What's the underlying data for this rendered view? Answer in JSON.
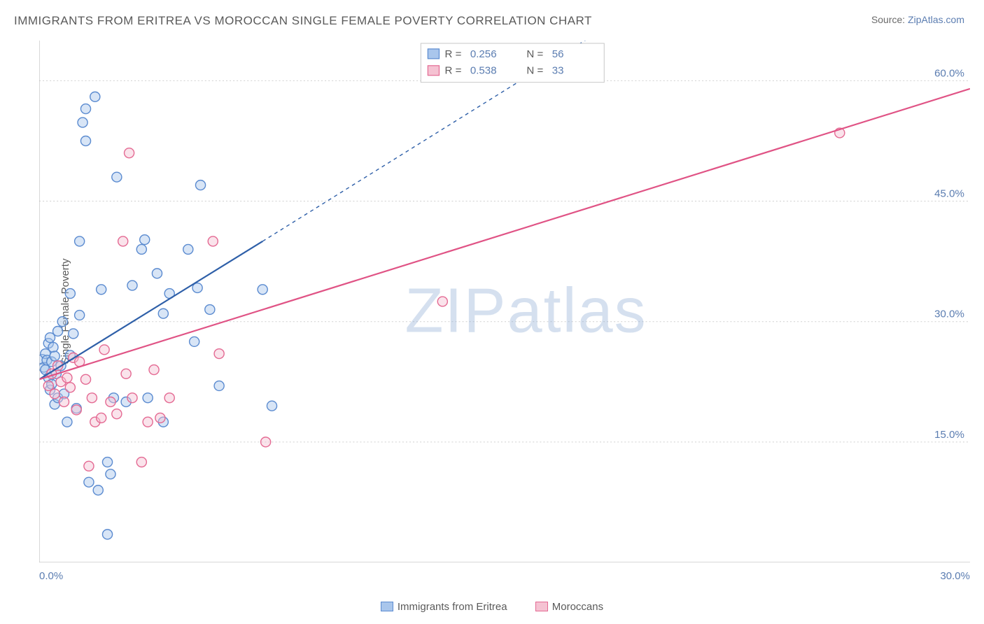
{
  "title": "IMMIGRANTS FROM ERITREA VS MOROCCAN SINGLE FEMALE POVERTY CORRELATION CHART",
  "source_prefix": "Source: ",
  "source_link": "ZipAtlas.com",
  "ylabel": "Single Female Poverty",
  "watermark_a": "ZIP",
  "watermark_b": "atlas",
  "chart": {
    "type": "scatter",
    "xlim": [
      0,
      30
    ],
    "ylim": [
      0,
      65
    ],
    "yticks": [
      15,
      30,
      45,
      60
    ],
    "ytick_labels": [
      "15.0%",
      "30.0%",
      "45.0%",
      "60.0%"
    ],
    "xticks": [
      0,
      5,
      10,
      15,
      20,
      25,
      30
    ],
    "xtick_labels_shown": {
      "0": "0.0%",
      "30": "30.0%"
    },
    "grid_color": "#d0d0d0",
    "axis_color": "#bfbfbf",
    "background": "#ffffff",
    "marker_radius": 7,
    "series": [
      {
        "name": "Immigrants from Eritrea",
        "fill": "#a9c6ec",
        "stroke": "#5b8bd0",
        "trend_color": "#2e5fa8",
        "R": "0.256",
        "N": "56",
        "trend": {
          "x1": 0,
          "y1": 22.8,
          "x2_solid": 7.2,
          "y2_solid": 40.0,
          "x2_dash": 18.0,
          "y2_dash": 66.0
        },
        "points": [
          [
            0.1,
            25.3
          ],
          [
            0.15,
            24.3
          ],
          [
            0.2,
            26.0
          ],
          [
            0.2,
            24.0
          ],
          [
            0.25,
            25.2
          ],
          [
            0.3,
            27.3
          ],
          [
            0.3,
            23.0
          ],
          [
            0.35,
            28.0
          ],
          [
            0.35,
            21.5
          ],
          [
            0.4,
            25.0
          ],
          [
            0.4,
            22.2
          ],
          [
            0.45,
            26.8
          ],
          [
            0.5,
            25.7
          ],
          [
            0.5,
            19.7
          ],
          [
            0.55,
            23.5
          ],
          [
            0.6,
            28.8
          ],
          [
            0.6,
            20.5
          ],
          [
            0.7,
            24.5
          ],
          [
            0.75,
            30.0
          ],
          [
            0.8,
            21.0
          ],
          [
            0.9,
            17.5
          ],
          [
            1.0,
            33.5
          ],
          [
            1.0,
            25.8
          ],
          [
            1.1,
            28.5
          ],
          [
            1.2,
            19.2
          ],
          [
            1.3,
            30.8
          ],
          [
            1.3,
            40.0
          ],
          [
            1.4,
            54.8
          ],
          [
            1.5,
            56.5
          ],
          [
            1.5,
            52.5
          ],
          [
            1.6,
            10.0
          ],
          [
            1.8,
            58.0
          ],
          [
            1.9,
            9.0
          ],
          [
            2.0,
            34.0
          ],
          [
            2.2,
            12.5
          ],
          [
            2.2,
            3.5
          ],
          [
            2.3,
            11.0
          ],
          [
            2.4,
            20.5
          ],
          [
            2.5,
            48.0
          ],
          [
            2.8,
            20.0
          ],
          [
            3.0,
            34.5
          ],
          [
            3.3,
            39.0
          ],
          [
            3.4,
            40.2
          ],
          [
            3.5,
            20.5
          ],
          [
            3.8,
            36.0
          ],
          [
            4.0,
            31.0
          ],
          [
            4.0,
            17.5
          ],
          [
            4.2,
            33.5
          ],
          [
            4.8,
            39.0
          ],
          [
            5.0,
            27.5
          ],
          [
            5.1,
            34.2
          ],
          [
            5.2,
            47.0
          ],
          [
            5.5,
            31.5
          ],
          [
            5.8,
            22.0
          ],
          [
            7.5,
            19.5
          ],
          [
            7.2,
            34.0
          ]
        ]
      },
      {
        "name": "Moroccans",
        "fill": "#f5c2d2",
        "stroke": "#e46a93",
        "trend_color": "#e05385",
        "R": "0.538",
        "N": "33",
        "trend": {
          "x1": 0,
          "y1": 22.8,
          "x2_solid": 30.0,
          "y2_solid": 59.0
        },
        "points": [
          [
            0.3,
            22.0
          ],
          [
            0.4,
            23.5
          ],
          [
            0.5,
            21.0
          ],
          [
            0.6,
            24.5
          ],
          [
            0.7,
            22.5
          ],
          [
            0.8,
            20.0
          ],
          [
            0.9,
            23.0
          ],
          [
            1.0,
            21.8
          ],
          [
            1.1,
            25.5
          ],
          [
            1.2,
            19.0
          ],
          [
            1.3,
            25.0
          ],
          [
            1.5,
            22.8
          ],
          [
            1.6,
            12.0
          ],
          [
            1.7,
            20.5
          ],
          [
            1.8,
            17.5
          ],
          [
            2.0,
            18.0
          ],
          [
            2.1,
            26.5
          ],
          [
            2.3,
            20.0
          ],
          [
            2.5,
            18.5
          ],
          [
            2.7,
            40.0
          ],
          [
            2.8,
            23.5
          ],
          [
            2.9,
            51.0
          ],
          [
            3.0,
            20.5
          ],
          [
            3.3,
            12.5
          ],
          [
            3.5,
            17.5
          ],
          [
            3.7,
            24.0
          ],
          [
            3.9,
            18.0
          ],
          [
            4.2,
            20.5
          ],
          [
            5.6,
            40.0
          ],
          [
            5.8,
            26.0
          ],
          [
            7.3,
            15.0
          ],
          [
            13.0,
            32.5
          ],
          [
            25.8,
            53.5
          ]
        ]
      }
    ],
    "r_legend": {
      "R_label": "R =",
      "N_label": "N ="
    }
  }
}
